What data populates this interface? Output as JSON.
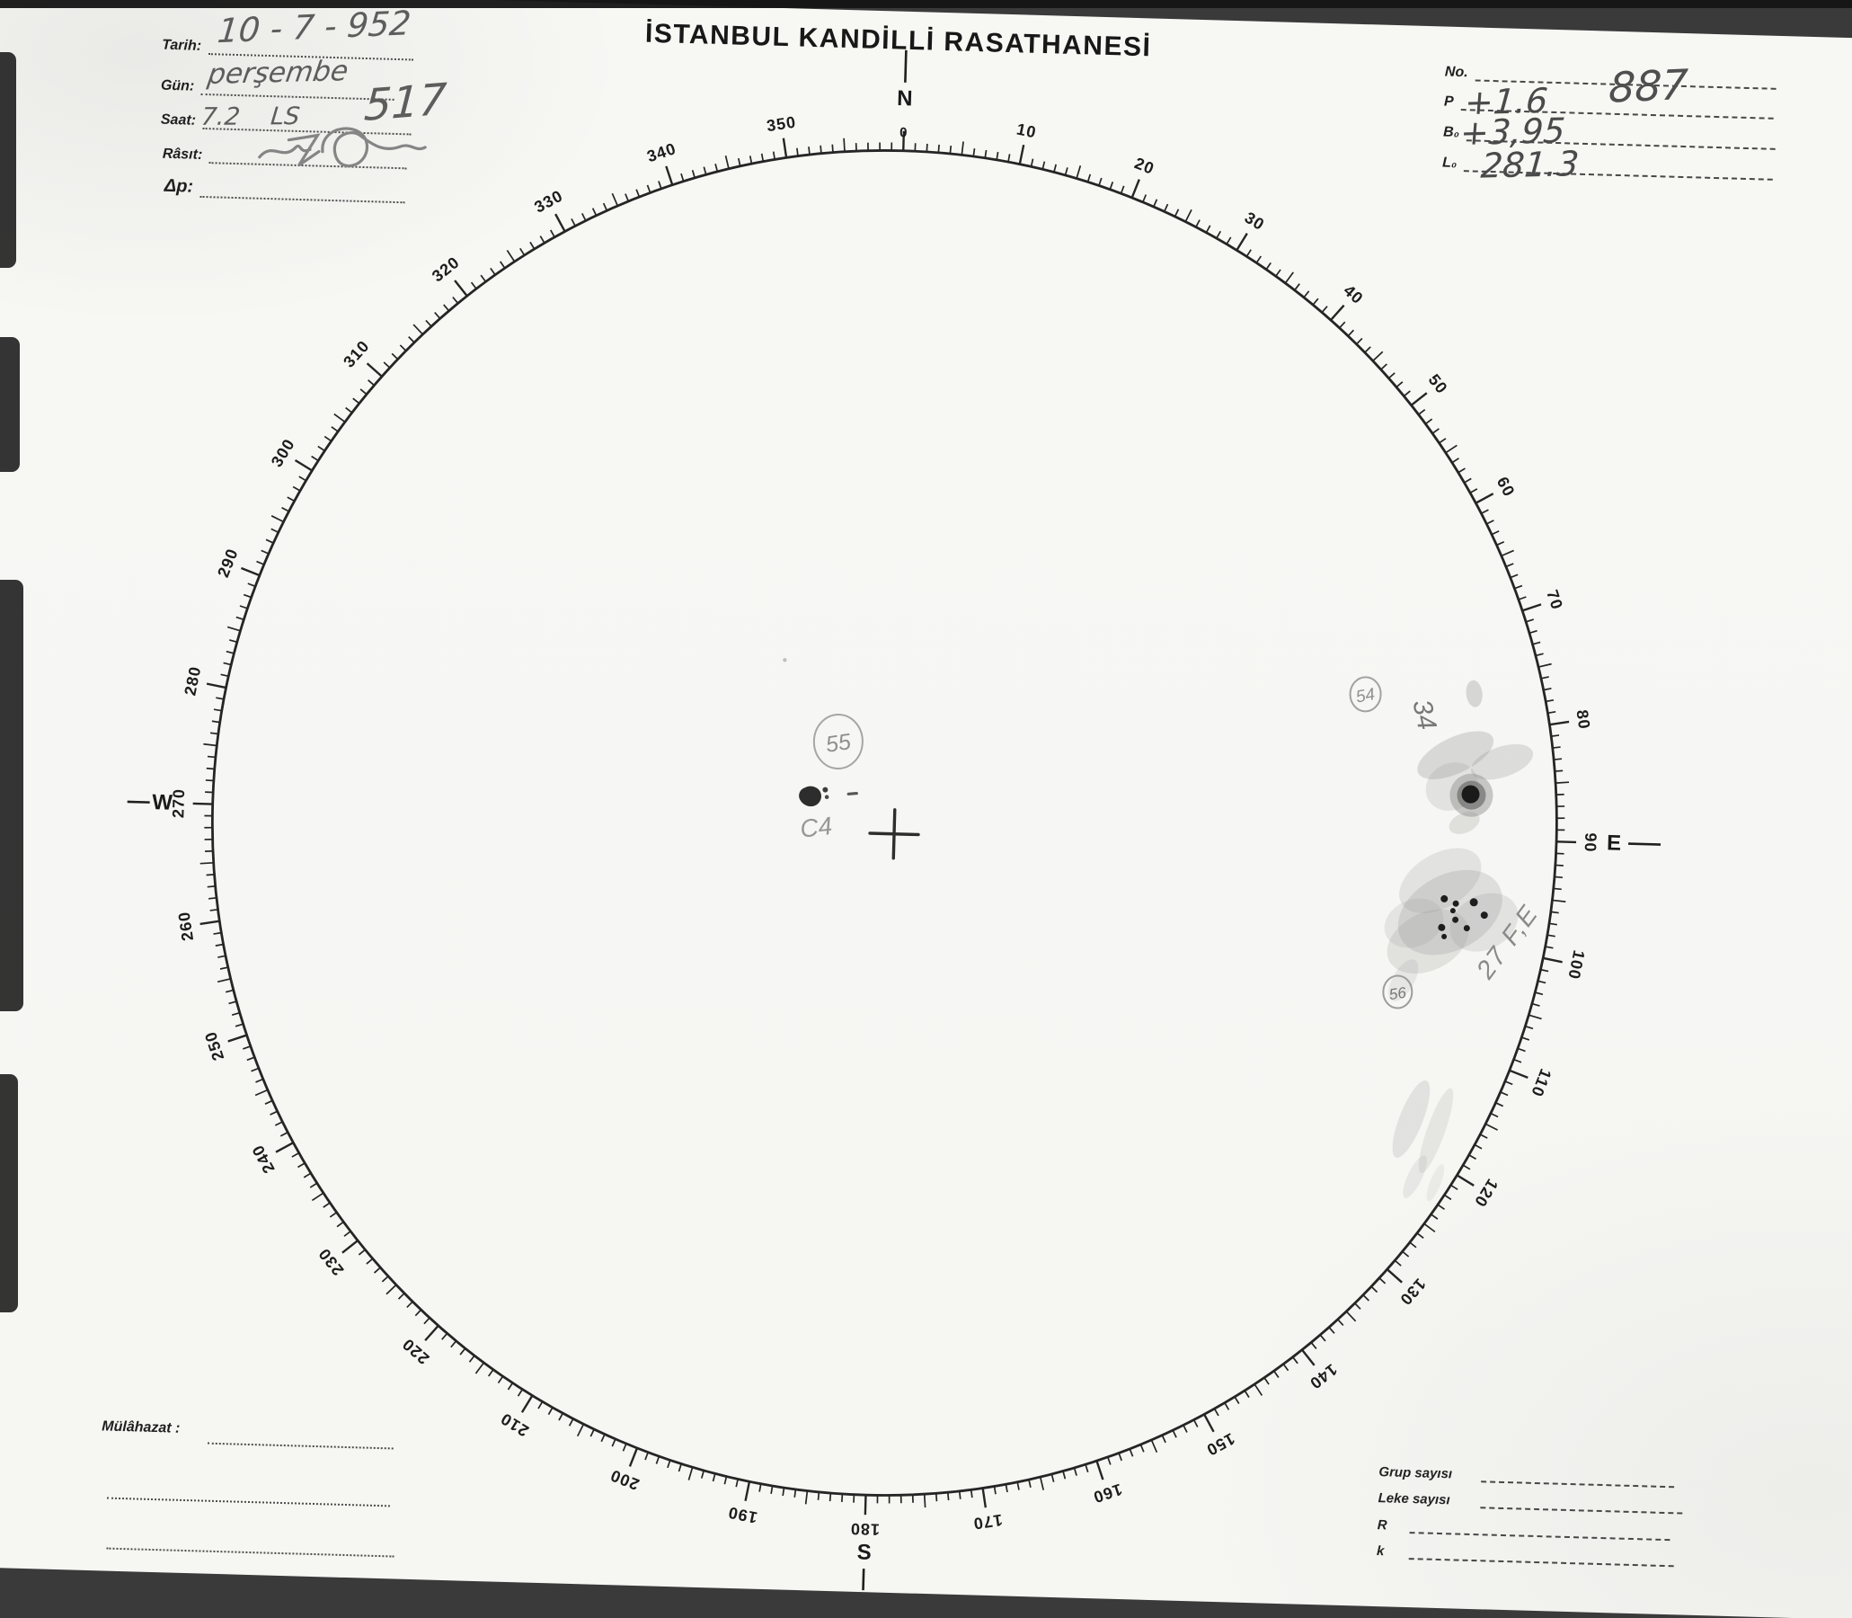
{
  "header": {
    "title": "İSTANBUL KANDİLLİ RASATHANESİ",
    "fields_left": [
      {
        "label": "Tarih:",
        "value": "10 - 7 - 952"
      },
      {
        "label": "Gün:",
        "value": "perşembe"
      },
      {
        "label": "Saat:",
        "value": "7.2    LS",
        "value2": "517"
      },
      {
        "label": "Râsıt:",
        "value": ""
      },
      {
        "label": "Δp:",
        "value": ""
      }
    ],
    "fields_right": [
      {
        "label": "No.",
        "value": "887"
      },
      {
        "label": "P",
        "value": "+1.6"
      },
      {
        "label": "B₀",
        "value": "+3,95"
      },
      {
        "label": "L₀",
        "value": "281.3"
      }
    ]
  },
  "dial": {
    "compass": {
      "n": "N",
      "e": "E",
      "s": "S",
      "w": "W"
    },
    "degree_labels": [
      "0",
      "10",
      "20",
      "30",
      "40",
      "50",
      "60",
      "70",
      "80",
      "90",
      "100",
      "110",
      "120",
      "130",
      "140",
      "150",
      "160",
      "170",
      "180",
      "190",
      "200",
      "210",
      "220",
      "230",
      "240",
      "250",
      "260",
      "270",
      "280",
      "290",
      "300",
      "310",
      "320",
      "330",
      "340",
      "350"
    ]
  },
  "annotations": {
    "group_center": {
      "group_no": "55",
      "note": "C4"
    },
    "group_east_upper": {
      "group_no": "54",
      "note": "34"
    },
    "group_east_lower": {
      "group_no": "56",
      "note": "27 F,E"
    }
  },
  "footer": {
    "remarks_label": "Mülâhazat :",
    "stats": [
      {
        "label": "Grup sayısı",
        "value": ""
      },
      {
        "label": "Leke sayısı",
        "value": ""
      },
      {
        "label": "R",
        "value": ""
      },
      {
        "label": "k",
        "value": ""
      }
    ]
  },
  "colors": {
    "ink": "#252525",
    "pencil": "#8c8c8c",
    "paper": "#f7f7f4"
  }
}
